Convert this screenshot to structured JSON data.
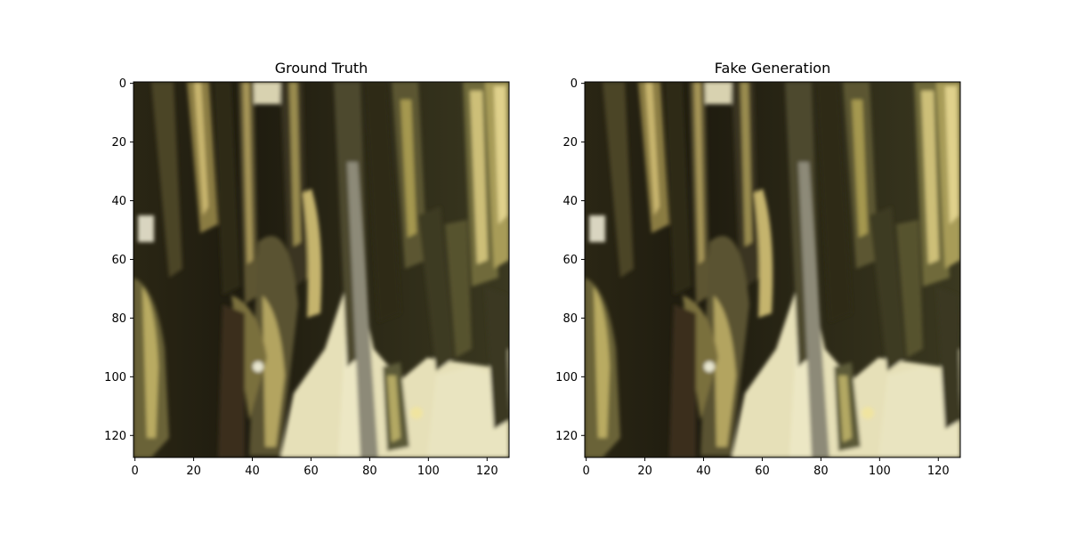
{
  "figure": {
    "panels": [
      {
        "title": "Ground Truth",
        "x_ticks": [
          "0",
          "20",
          "40",
          "60",
          "80",
          "100",
          "120"
        ],
        "y_ticks": [
          "0",
          "20",
          "40",
          "60",
          "80",
          "100",
          "120"
        ]
      },
      {
        "title": "Fake Generation",
        "x_ticks": [
          "0",
          "20",
          "40",
          "60",
          "80",
          "100",
          "120"
        ],
        "y_ticks": [
          "0",
          "20",
          "40",
          "60",
          "80",
          "100",
          "120"
        ]
      }
    ],
    "image_content": {
      "description_colors": {
        "dark": "#1c1a10",
        "olive": "#4a4526",
        "gold": "#b7a866",
        "light_gold": "#d8cf8f",
        "cream": "#ece7c4",
        "grey_stem": "#8d8a78"
      }
    }
  }
}
